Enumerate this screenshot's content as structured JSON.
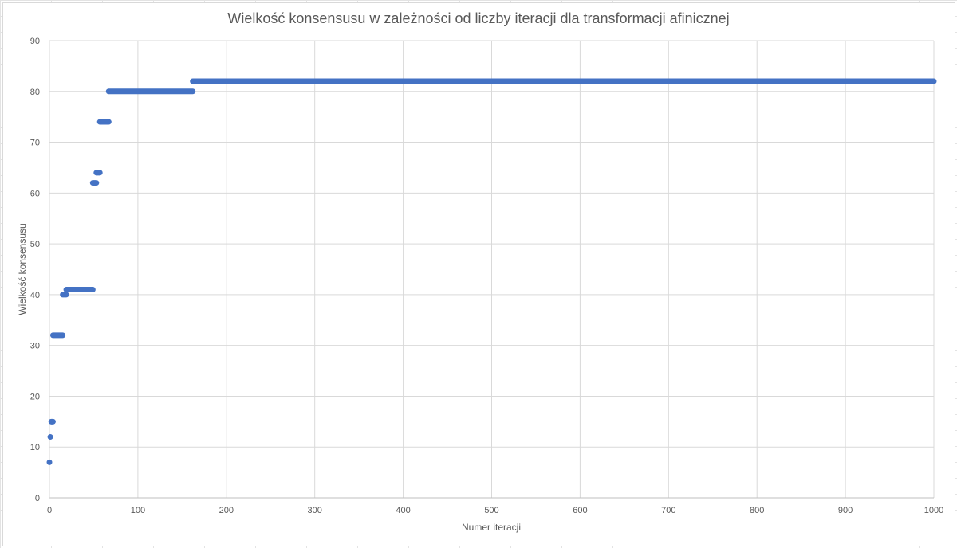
{
  "chart_data": {
    "type": "scatter",
    "title": "Wielkość konsensusu w zależności od liczby iteracji dla transformacji afinicznej",
    "xlabel": "Numer iteracji",
    "ylabel": "Wielkość konsensusu",
    "xlim": [
      0,
      1000
    ],
    "ylim": [
      0,
      90
    ],
    "x_ticks": [
      "0",
      "100",
      "200",
      "300",
      "400",
      "500",
      "600",
      "700",
      "800",
      "900",
      "1000"
    ],
    "y_ticks": [
      "0",
      "10",
      "20",
      "30",
      "40",
      "50",
      "60",
      "70",
      "80",
      "90"
    ],
    "grid": true,
    "legend": "none",
    "marker_color": "#4472c4",
    "series": [
      {
        "segments": [
          {
            "x_start": 0,
            "x_end": 0,
            "y": 7
          },
          {
            "x_start": 1,
            "x_end": 1,
            "y": 12
          },
          {
            "x_start": 2,
            "x_end": 4,
            "y": 15
          },
          {
            "x_start": 4,
            "x_end": 15,
            "y": 32
          },
          {
            "x_start": 15,
            "x_end": 19,
            "y": 40
          },
          {
            "x_start": 19,
            "x_end": 49,
            "y": 41
          },
          {
            "x_start": 49,
            "x_end": 53,
            "y": 62
          },
          {
            "x_start": 53,
            "x_end": 57,
            "y": 64
          },
          {
            "x_start": 57,
            "x_end": 67,
            "y": 74
          },
          {
            "x_start": 67,
            "x_end": 162,
            "y": 80
          },
          {
            "x_start": 162,
            "x_end": 1000,
            "y": 82
          }
        ]
      }
    ]
  }
}
